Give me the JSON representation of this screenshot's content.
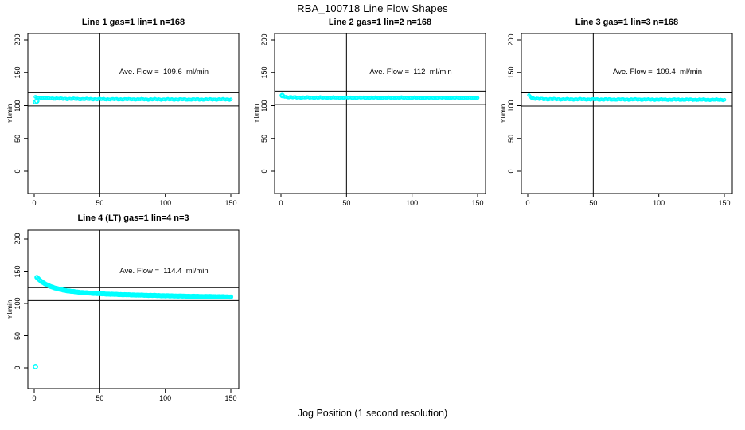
{
  "title": "RBA_100718  Line Flow Shapes",
  "xlabel": "Jog Position (1 second resolution)",
  "background_color": "#ffffff",
  "axis_color": "#000000",
  "marker_color": "#00FFFF",
  "chart_data": [
    {
      "type": "scatter",
      "title": "Line 1 gas=1 lin=1 n=168",
      "annotation": "Ave. Flow =  109.6  ml/min",
      "ave_flow": 109.6,
      "n": 168,
      "ylabel": "ml/min",
      "xticks": [
        0,
        50,
        100,
        150
      ],
      "yticks": [
        0,
        50,
        100,
        150,
        200
      ],
      "xlim": [
        -6,
        156
      ],
      "ylim": [
        -33,
        211
      ],
      "vline_x": 50,
      "hlines": [
        99.6,
        119.6
      ],
      "marker": "open-circle",
      "marker_color": "#00FFFF",
      "x_range": [
        1,
        150
      ],
      "shape_anchors": [
        [
          1,
          112.8
        ],
        [
          3,
          112.2
        ],
        [
          6,
          111.7
        ],
        [
          10,
          111.2
        ],
        [
          20,
          110.5
        ],
        [
          35,
          110.0
        ],
        [
          60,
          109.7
        ],
        [
          90,
          109.5
        ],
        [
          120,
          109.4
        ],
        [
          150,
          109.4
        ]
      ],
      "extra_points": [
        [
          1,
          105.8
        ],
        [
          2,
          107.0
        ]
      ],
      "annotation_xy": [
        99,
        150
      ]
    },
    {
      "type": "scatter",
      "title": "Line 2 gas=1 lin=2 n=168",
      "annotation": "Ave. Flow =  112  ml/min",
      "ave_flow": 112,
      "n": 168,
      "ylabel": "ml/min",
      "xticks": [
        0,
        50,
        100,
        150
      ],
      "yticks": [
        0,
        50,
        100,
        150,
        200
      ],
      "xlim": [
        -6,
        156
      ],
      "ylim": [
        -33,
        211
      ],
      "vline_x": 50,
      "hlines": [
        102,
        122
      ],
      "marker": "open-circle",
      "marker_color": "#00FFFF",
      "x_range": [
        1,
        150
      ],
      "shape_anchors": [
        [
          1,
          114.8
        ],
        [
          2,
          114.2
        ],
        [
          4,
          113.2
        ],
        [
          8,
          112.6
        ],
        [
          15,
          112.3
        ],
        [
          30,
          112.1
        ],
        [
          60,
          112.0
        ],
        [
          100,
          111.9
        ],
        [
          150,
          111.8
        ]
      ],
      "extra_points": [
        [
          1,
          115.3
        ]
      ],
      "annotation_xy": [
        99,
        150
      ]
    },
    {
      "type": "scatter",
      "title": "Line 3 gas=1 lin=3 n=168",
      "annotation": "Ave. Flow =  109.4  ml/min",
      "ave_flow": 109.4,
      "n": 168,
      "ylabel": "ml/min",
      "xticks": [
        0,
        50,
        100,
        150
      ],
      "yticks": [
        0,
        50,
        100,
        150,
        200
      ],
      "xlim": [
        -6,
        156
      ],
      "ylim": [
        -33,
        211
      ],
      "vline_x": 50,
      "hlines": [
        99.4,
        119.4
      ],
      "marker": "open-circle",
      "marker_color": "#00FFFF",
      "x_range": [
        1,
        150
      ],
      "shape_anchors": [
        [
          1,
          115.2
        ],
        [
          2,
          113.8
        ],
        [
          3,
          112.2
        ],
        [
          5,
          110.8
        ],
        [
          8,
          110.2
        ],
        [
          15,
          109.8
        ],
        [
          30,
          109.6
        ],
        [
          60,
          109.4
        ],
        [
          100,
          109.2
        ],
        [
          150,
          108.9
        ]
      ],
      "extra_points": [],
      "annotation_xy": [
        99,
        150
      ]
    },
    {
      "type": "scatter",
      "title": "Line 4 (LT) gas=1 lin=4 n=3",
      "annotation": "Ave. Flow =  114.4  ml/min",
      "ave_flow": 114.4,
      "n": 3,
      "ylabel": "ml/min",
      "xticks": [
        0,
        50,
        100,
        150
      ],
      "yticks": [
        0,
        50,
        100,
        150,
        200
      ],
      "xlim": [
        -6,
        156
      ],
      "ylim": [
        -33,
        211
      ],
      "vline_x": 50,
      "hlines": [
        104.4,
        124.4
      ],
      "marker": "open-circle",
      "marker_color": "#00FFFF",
      "x_range": [
        2,
        150
      ],
      "shape_anchors": [
        [
          2,
          140.5
        ],
        [
          3,
          138.5
        ],
        [
          4,
          136.5
        ],
        [
          5,
          134.8
        ],
        [
          6,
          133.2
        ],
        [
          8,
          130.5
        ],
        [
          10,
          128.3
        ],
        [
          13,
          125.8
        ],
        [
          16,
          123.8
        ],
        [
          20,
          121.6
        ],
        [
          25,
          119.6
        ],
        [
          30,
          118.2
        ],
        [
          36,
          116.9
        ],
        [
          43,
          115.8
        ],
        [
          50,
          115.0
        ],
        [
          60,
          114.1
        ],
        [
          70,
          113.4
        ],
        [
          80,
          112.8
        ],
        [
          90,
          112.3
        ],
        [
          100,
          111.8
        ],
        [
          110,
          111.4
        ],
        [
          120,
          111.0
        ],
        [
          130,
          110.7
        ],
        [
          140,
          110.4
        ],
        [
          150,
          110.1
        ]
      ],
      "extra_points": [
        [
          1,
          2
        ]
      ],
      "annotation_xy": [
        99,
        150
      ]
    }
  ]
}
